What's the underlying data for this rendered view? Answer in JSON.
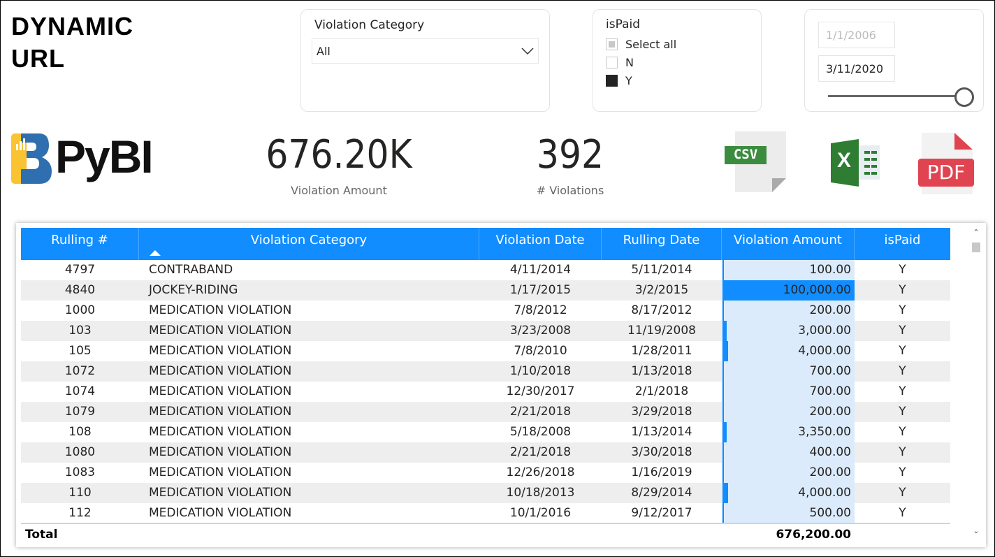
{
  "title": "DYNAMIC URL",
  "logo": {
    "text": "PyBI",
    "colors": [
      "#f9c333",
      "#2f6fb0"
    ]
  },
  "category_slicer": {
    "label": "Violation Category",
    "value": "All"
  },
  "ispaid_slicer": {
    "label": "isPaid",
    "options": [
      {
        "label": "Select all",
        "state": "partial"
      },
      {
        "label": "N",
        "state": "unchecked"
      },
      {
        "label": "Y",
        "state": "checked"
      }
    ]
  },
  "date_slicer": {
    "start": "1/1/2006",
    "end": "3/11/2020"
  },
  "kpis": [
    {
      "value": "676.20K",
      "label": "Violation Amount"
    },
    {
      "value": "392",
      "label": "# Violations"
    }
  ],
  "exports": [
    {
      "name": "csv",
      "text": "CSV",
      "color": "#3b8c3f"
    },
    {
      "name": "excel",
      "text": "X",
      "color": "#2e7d32"
    },
    {
      "name": "pdf",
      "text": "PDF",
      "color": "#e04451"
    }
  ],
  "accent": "#118dff",
  "table": {
    "columns": [
      "Rulling #",
      "Violation Category",
      "Violation Date",
      "Rulling Date",
      "Violation Amount",
      "isPaid"
    ],
    "sort_column": 1,
    "max_amount": 100000,
    "rows": [
      [
        "4797",
        "CONTRABAND",
        "4/11/2014",
        "5/11/2014",
        "100.00",
        "Y",
        100
      ],
      [
        "4840",
        "JOCKEY-RIDING",
        "1/17/2015",
        "3/2/2015",
        "100,000.00",
        "Y",
        100000
      ],
      [
        "1000",
        "MEDICATION VIOLATION",
        "7/8/2012",
        "8/17/2012",
        "200.00",
        "Y",
        200
      ],
      [
        "103",
        "MEDICATION VIOLATION",
        "3/23/2008",
        "11/19/2008",
        "3,000.00",
        "Y",
        3000
      ],
      [
        "105",
        "MEDICATION VIOLATION",
        "7/8/2010",
        "1/28/2011",
        "4,000.00",
        "Y",
        4000
      ],
      [
        "1072",
        "MEDICATION VIOLATION",
        "1/10/2018",
        "1/13/2018",
        "700.00",
        "Y",
        700
      ],
      [
        "1074",
        "MEDICATION VIOLATION",
        "12/30/2017",
        "2/1/2018",
        "700.00",
        "Y",
        700
      ],
      [
        "1079",
        "MEDICATION VIOLATION",
        "2/21/2018",
        "3/29/2018",
        "200.00",
        "Y",
        200
      ],
      [
        "108",
        "MEDICATION VIOLATION",
        "5/18/2008",
        "1/13/2014",
        "3,350.00",
        "Y",
        3350
      ],
      [
        "1080",
        "MEDICATION VIOLATION",
        "2/21/2018",
        "3/30/2018",
        "400.00",
        "Y",
        400
      ],
      [
        "1083",
        "MEDICATION VIOLATION",
        "12/26/2018",
        "1/16/2019",
        "200.00",
        "Y",
        200
      ],
      [
        "110",
        "MEDICATION VIOLATION",
        "10/18/2013",
        "8/29/2014",
        "4,000.00",
        "Y",
        4000
      ],
      [
        "112",
        "MEDICATION VIOLATION",
        "10/1/2016",
        "9/12/2017",
        "500.00",
        "Y",
        500
      ]
    ],
    "total_label": "Total",
    "total_amount": "676,200.00"
  }
}
